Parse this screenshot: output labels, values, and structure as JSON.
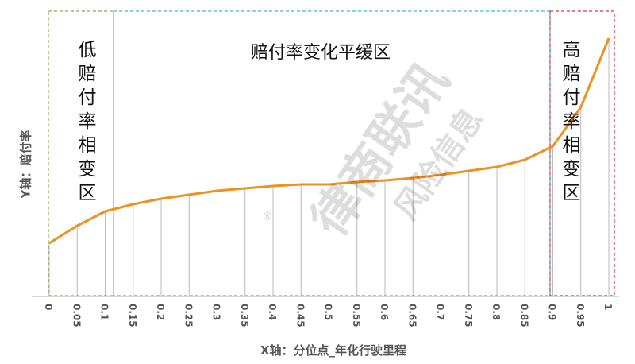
{
  "chart_data": {
    "type": "line",
    "title": "",
    "xlabel": "X轴：分位点_年化行驶里程",
    "ylabel": "Y轴：赔付率",
    "x": [
      0,
      0.05,
      0.1,
      0.15,
      0.2,
      0.25,
      0.3,
      0.35,
      0.4,
      0.45,
      0.5,
      0.55,
      0.6,
      0.65,
      0.7,
      0.75,
      0.8,
      0.85,
      0.9,
      0.95,
      1
    ],
    "x_tick_labels": [
      "0",
      "0.05",
      "0.1",
      "0.15",
      "0.2",
      "0.25",
      "0.3",
      "0.35",
      "0.4",
      "0.45",
      "0.5",
      "0.55",
      "0.6",
      "0.65",
      "0.7",
      "0.75",
      "0.8",
      "0.85",
      "0.9",
      "0.95",
      "1"
    ],
    "values": [
      66,
      88,
      106,
      115,
      122,
      127,
      132,
      135,
      138,
      140,
      140,
      143,
      145,
      148,
      152,
      157,
      162,
      171,
      188,
      237,
      324
    ],
    "y_scale_note": "relative, no y ticks printed",
    "xlim": [
      0,
      1
    ],
    "grid": "vertical drop lines at each point",
    "line_color": "#F0901E",
    "regions": [
      {
        "label": "低赔付率相变区",
        "x_range": [
          0,
          0.115
        ],
        "color": "#7DB04A"
      },
      {
        "label": "赔付率变化平缓区",
        "x_range": [
          0.115,
          0.895
        ],
        "color": "#3BB4E0"
      },
      {
        "label": "高赔付率相变区",
        "x_range": [
          0.895,
          1.01
        ],
        "color": "#E0303A"
      }
    ]
  },
  "watermark": {
    "main": "律商联讯",
    "sub": "风险信息",
    "mark": "®"
  }
}
